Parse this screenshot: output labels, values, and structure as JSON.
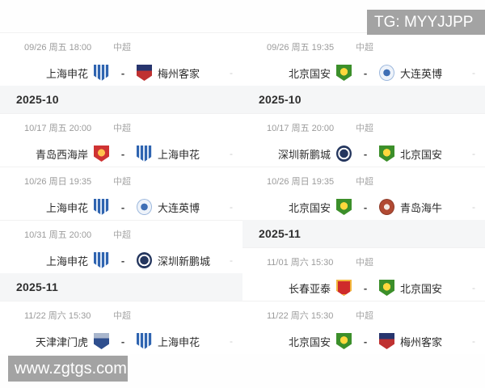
{
  "watermarks": {
    "top": "TG: MYYJJPP",
    "bottom": "www.zgtgs.com"
  },
  "colors": {
    "watermark_bg": "#a3a3a3",
    "month_bg": "#f5f6f7",
    "muted_text": "#9b9b9b",
    "team_text": "#2d2d2d"
  },
  "columns": {
    "left": {
      "items": [
        {
          "type": "match",
          "datetime": "09/26 周五 18:00",
          "league": "中超",
          "vs": "-",
          "score": "-",
          "home": {
            "name": "上海申花",
            "badge_class": "team-badge shield shenhua"
          },
          "away": {
            "name": "梅州客家",
            "badge_class": "team-badge shield meizhou"
          }
        },
        {
          "type": "month",
          "label": "2025-10"
        },
        {
          "type": "match",
          "datetime": "10/17 周五 20:00",
          "league": "中超",
          "vs": "-",
          "score": "-",
          "home": {
            "name": "青岛西海岸",
            "badge_class": "team-badge shield qdwest"
          },
          "away": {
            "name": "上海申花",
            "badge_class": "team-badge shield shenhua"
          }
        },
        {
          "type": "match",
          "datetime": "10/26 周日 19:35",
          "league": "中超",
          "vs": "-",
          "score": "-",
          "home": {
            "name": "上海申花",
            "badge_class": "team-badge shield shenhua"
          },
          "away": {
            "name": "大连英博",
            "badge_class": "team-badge circle dalian"
          }
        },
        {
          "type": "match",
          "datetime": "10/31 周五 20:00",
          "league": "中超",
          "vs": "-",
          "score": "-",
          "home": {
            "name": "上海申花",
            "badge_class": "team-badge shield shenhua"
          },
          "away": {
            "name": "深圳新鹏城",
            "badge_class": "team-badge circle pengcity"
          }
        },
        {
          "type": "month",
          "label": "2025-11"
        },
        {
          "type": "match",
          "datetime": "11/22 周六 15:30",
          "league": "中超",
          "vs": "-",
          "score": "-",
          "home": {
            "name": "天津津门虎",
            "badge_class": "team-badge shield tianjin"
          },
          "away": {
            "name": "上海申花",
            "badge_class": "team-badge shield shenhua"
          }
        }
      ]
    },
    "right": {
      "items": [
        {
          "type": "match",
          "datetime": "09/26 周五 19:35",
          "league": "中超",
          "vs": "-",
          "score": "-",
          "home": {
            "name": "北京国安",
            "badge_class": "team-badge shield guoan"
          },
          "away": {
            "name": "大连英博",
            "badge_class": "team-badge circle dalian"
          }
        },
        {
          "type": "month",
          "label": "2025-10"
        },
        {
          "type": "match",
          "datetime": "10/17 周五 20:00",
          "league": "中超",
          "vs": "-",
          "score": "-",
          "home": {
            "name": "深圳新鹏城",
            "badge_class": "team-badge circle pengcity"
          },
          "away": {
            "name": "北京国安",
            "badge_class": "team-badge shield guoan"
          }
        },
        {
          "type": "match",
          "datetime": "10/26 周日 19:35",
          "league": "中超",
          "vs": "-",
          "score": "-",
          "home": {
            "name": "北京国安",
            "badge_class": "team-badge shield guoan"
          },
          "away": {
            "name": "青岛海牛",
            "badge_class": "team-badge circle hainiu"
          }
        },
        {
          "type": "month",
          "label": "2025-11"
        },
        {
          "type": "match",
          "datetime": "11/01 周六 15:30",
          "league": "中超",
          "vs": "-",
          "score": "-",
          "home": {
            "name": "长春亚泰",
            "badge_class": "team-badge shield yatai"
          },
          "away": {
            "name": "北京国安",
            "badge_class": "team-badge shield guoan"
          }
        },
        {
          "type": "match",
          "datetime": "11/22 周六 15:30",
          "league": "中超",
          "vs": "-",
          "score": "-",
          "home": {
            "name": "北京国安",
            "badge_class": "team-badge shield guoan"
          },
          "away": {
            "name": "梅州客家",
            "badge_class": "team-badge shield meizhou"
          }
        }
      ]
    }
  }
}
